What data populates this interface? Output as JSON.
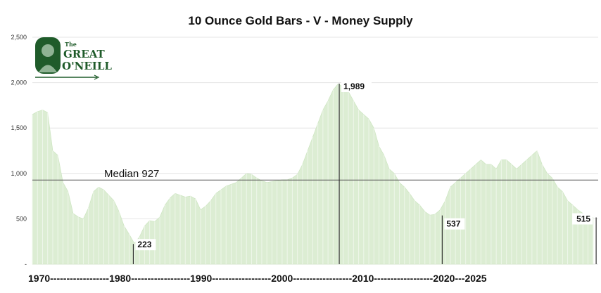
{
  "chart_data": {
    "type": "area",
    "title": "10 Ounce Gold Bars - V - Money Supply",
    "xlabel": "",
    "ylabel": "",
    "xlim": [
      1970,
      2025.5
    ],
    "ylim": [
      0,
      2500
    ],
    "y_ticks": [
      {
        "value": 0,
        "label": "-"
      },
      {
        "value": 500,
        "label": "500"
      },
      {
        "value": 1000,
        "label": "1,000"
      },
      {
        "value": 1500,
        "label": "1,500"
      },
      {
        "value": 2000,
        "label": "2,000"
      },
      {
        "value": 2500,
        "label": "2,500"
      }
    ],
    "x_axis_text": "1970------------------1980------------------1990------------------2000------------------2010------------------2020---2025",
    "grid": true,
    "series": [
      {
        "color": "#dcedd3",
        "x": [
          1970,
          1970.5,
          1971,
          1971.5,
          1972,
          1972.5,
          1973,
          1973.5,
          1974,
          1974.5,
          1975,
          1975.5,
          1976,
          1976.5,
          1977,
          1977.5,
          1978,
          1978.5,
          1979,
          1979.5,
          1980,
          1980.5,
          1981,
          1981.5,
          1982,
          1982.5,
          1983,
          1983.5,
          1984,
          1984.5,
          1985,
          1985.5,
          1986,
          1986.5,
          1987,
          1987.5,
          1988,
          1988.5,
          1989,
          1989.5,
          1990,
          1990.5,
          1991,
          1991.5,
          1992,
          1992.5,
          1993,
          1993.5,
          1994,
          1994.5,
          1995,
          1995.5,
          1996,
          1996.5,
          1997,
          1997.5,
          1998,
          1998.5,
          1999,
          1999.5,
          2000,
          2000.5,
          2001,
          2001.5,
          2002,
          2002.5,
          2003,
          2003.5,
          2004,
          2004.5,
          2005,
          2005.5,
          2006,
          2006.5,
          2007,
          2007.5,
          2008,
          2008.5,
          2009,
          2009.5,
          2010,
          2010.5,
          2011,
          2011.5,
          2012,
          2012.5,
          2013,
          2013.5,
          2014,
          2014.5,
          2015,
          2015.5,
          2016,
          2016.5,
          2017,
          2017.5,
          2018,
          2018.5,
          2019,
          2019.5,
          2020,
          2020.5,
          2021,
          2021.5,
          2022,
          2022.5,
          2023,
          2023.5,
          2024,
          2024.5,
          2025
        ],
        "values": [
          1650,
          1680,
          1700,
          1670,
          1250,
          1200,
          900,
          800,
          560,
          520,
          500,
          620,
          800,
          850,
          820,
          760,
          700,
          580,
          420,
          330,
          230,
          300,
          420,
          480,
          470,
          520,
          650,
          730,
          780,
          760,
          740,
          750,
          720,
          600,
          640,
          700,
          780,
          820,
          860,
          880,
          900,
          950,
          1000,
          990,
          950,
          920,
          900,
          910,
          920,
          930,
          930,
          950,
          990,
          1100,
          1250,
          1400,
          1550,
          1700,
          1800,
          1920,
          1989,
          1950,
          1900,
          1800,
          1700,
          1650,
          1600,
          1500,
          1300,
          1200,
          1050,
          1000,
          900,
          850,
          780,
          700,
          650,
          580,
          540,
          550,
          600,
          700,
          850,
          900,
          950,
          1000,
          1050,
          1100,
          1150,
          1100,
          1100,
          1050,
          1150,
          1150,
          1100,
          1050,
          1100,
          1150,
          1200,
          1250,
          1100,
          1000,
          950,
          850,
          800,
          700,
          650,
          600,
          560,
          530,
          515
        ]
      }
    ],
    "reference_line": {
      "label": "Median 927",
      "value": 927
    },
    "annotations": [
      {
        "x": 1979.9,
        "y": 223,
        "label": "223"
      },
      {
        "x": 2000.1,
        "y": 1989,
        "label": "1,989"
      },
      {
        "x": 2010.2,
        "y": 537,
        "label": "537"
      },
      {
        "x": 2025.3,
        "y": 515,
        "label": "515"
      }
    ]
  },
  "logo": {
    "the": "The",
    "line1": "GREAT",
    "line2": "O'NEILL",
    "color": "#1f5b2a"
  }
}
